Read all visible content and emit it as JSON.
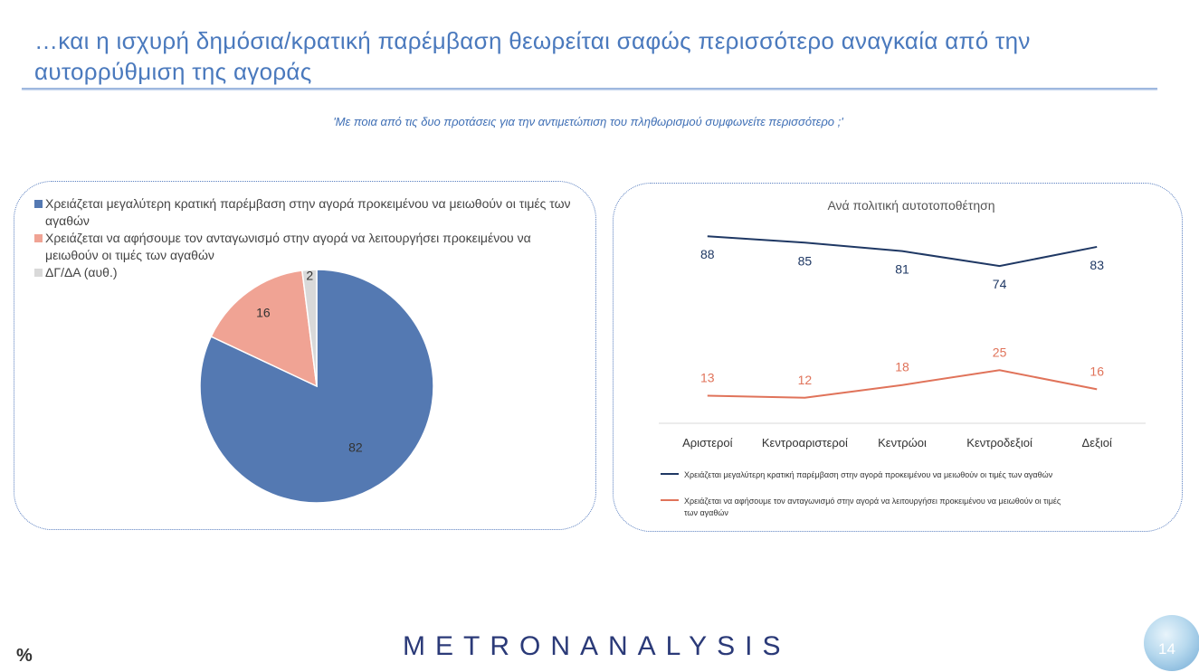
{
  "title": "…και η ισχυρή δημόσια/κρατική παρέμβαση θεωρείται σαφώς περισσότερο αναγκαία από την αυτορρύθμιση της αγοράς",
  "question": "'Με ποια από τις δυο προτάσεις για την αντιμετώπιση του πληθωρισμού συμφωνείτε περισσότερο ;'",
  "unit_label": "%",
  "logo_text": "METRONANALYSIS",
  "page_number": "14",
  "colors": {
    "title": "#4a79bd",
    "pie_state": "#5479b2",
    "pie_market": "#f0a394",
    "pie_dk": "#d9d9d9",
    "line_state": "#1f3864",
    "line_market": "#e0735a"
  },
  "chart_data": [
    {
      "type": "pie",
      "categories": [
        "Χρειάζεται μεγαλύτερη κρατική παρέμβαση στην αγορά προκειμένου να μειωθούν οι τιμές των αγαθών",
        "Χρειάζεται να αφήσουμε τον ανταγωνισμό στην αγορά να λειτουργήσει προκειμένου να μειωθούν οι τιμές των αγαθών",
        "ΔΓ/ΔΑ (αυθ.)"
      ],
      "values": [
        82,
        16,
        2
      ],
      "legend_position": "top-left"
    },
    {
      "type": "line",
      "title": "Ανά πολιτική αυτοτοποθέτηση",
      "categories": [
        "Αριστεροί",
        "Κεντροαριστεροί",
        "Κεντρώοι",
        "Κεντροδεξιοί",
        "Δεξιοί"
      ],
      "series": [
        {
          "name": "Χρειάζεται μεγαλύτερη κρατική παρέμβαση στην αγορά προκειμένου να μειωθούν οι τιμές των αγαθών",
          "values": [
            88,
            85,
            81,
            74,
            83
          ]
        },
        {
          "name": "Χρειάζεται να αφήσουμε τον ανταγωνισμό στην αγορά να λειτουργήσει προκειμένου να μειωθούν οι τιμές των αγαθών",
          "values": [
            13,
            12,
            18,
            25,
            16
          ]
        }
      ],
      "ylim": [
        0,
        100
      ],
      "grid": false,
      "legend_position": "bottom"
    }
  ]
}
